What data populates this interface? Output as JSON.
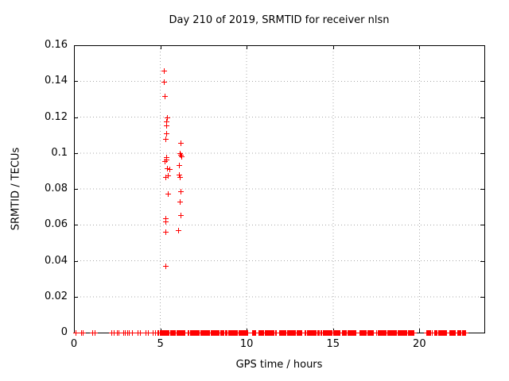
{
  "window": {
    "background": "#ffffff"
  },
  "chart_data": {
    "type": "scatter",
    "title": "Day 210 of 2019, SRMTID for receiver nlsn",
    "xlabel": "GPS time / hours",
    "ylabel": "SRMTID / TECUs",
    "xlim": [
      0,
      23.76
    ],
    "ylim": [
      0,
      0.16
    ],
    "x_ticks": [
      0,
      5,
      10,
      15,
      20
    ],
    "x_tick_labels": [
      "0",
      "5",
      "10",
      "15",
      "20"
    ],
    "y_ticks": [
      0,
      0.02,
      0.04,
      0.06,
      0.08,
      0.1,
      0.12,
      0.14,
      0.16
    ],
    "y_tick_labels": [
      "0",
      "0.02",
      "0.04",
      "0.06",
      "0.08",
      "0.1",
      "0.12",
      "0.14",
      "0.16"
    ],
    "grid": true,
    "legend": "none",
    "marker": "plus",
    "marker_color": "#ff0000",
    "grid_color": "#a8a8a8",
    "border_color": "#000000",
    "series": [
      {
        "name": "SRMTID",
        "points": [
          [
            5.21,
            0.1459
          ],
          [
            5.21,
            0.1396
          ],
          [
            5.23,
            0.1315
          ],
          [
            5.38,
            0.1199
          ],
          [
            5.34,
            0.1177
          ],
          [
            5.34,
            0.1152
          ],
          [
            5.34,
            0.1111
          ],
          [
            5.31,
            0.1078
          ],
          [
            5.33,
            0.0975
          ],
          [
            5.36,
            0.0964
          ],
          [
            5.25,
            0.0953
          ],
          [
            5.39,
            0.0917
          ],
          [
            5.54,
            0.091
          ],
          [
            5.42,
            0.0874
          ],
          [
            5.31,
            0.0866
          ],
          [
            5.44,
            0.0773
          ],
          [
            5.3,
            0.0635
          ],
          [
            5.3,
            0.0618
          ],
          [
            5.31,
            0.0562
          ],
          [
            5.31,
            0.0371
          ],
          [
            6.16,
            0.1057
          ],
          [
            6.12,
            0.0999
          ],
          [
            6.17,
            0.099
          ],
          [
            6.21,
            0.0982
          ],
          [
            6.08,
            0.0932
          ],
          [
            6.08,
            0.088
          ],
          [
            6.13,
            0.0866
          ],
          [
            6.19,
            0.0785
          ],
          [
            6.13,
            0.0729
          ],
          [
            6.19,
            0.0653
          ],
          [
            6.05,
            0.0569
          ]
        ]
      }
    ],
    "zero_line_singles": [
      0.1,
      0.42,
      0.52,
      1.05,
      1.18,
      2.18,
      2.3,
      2.48,
      2.6,
      2.85,
      2.95,
      3.08,
      3.2,
      3.35,
      3.7,
      3.82,
      4.15,
      4.3,
      4.55,
      4.7
    ],
    "zero_line_segments": [
      [
        4.85,
        5.55
      ],
      [
        5.62,
        6.45
      ],
      [
        6.6,
        8.65
      ],
      [
        8.76,
        10.1
      ],
      [
        10.3,
        10.5
      ],
      [
        10.68,
        11.72
      ],
      [
        11.87,
        13.18
      ],
      [
        13.37,
        14.18
      ],
      [
        14.29,
        15.4
      ],
      [
        15.52,
        16.33
      ],
      [
        16.52,
        17.32
      ],
      [
        17.52,
        19.68
      ],
      [
        20.4,
        20.73
      ],
      [
        20.87,
        21.58
      ],
      [
        21.72,
        22.08
      ],
      [
        22.2,
        22.65
      ]
    ],
    "zero_segment_step_hours": 0.05
  }
}
